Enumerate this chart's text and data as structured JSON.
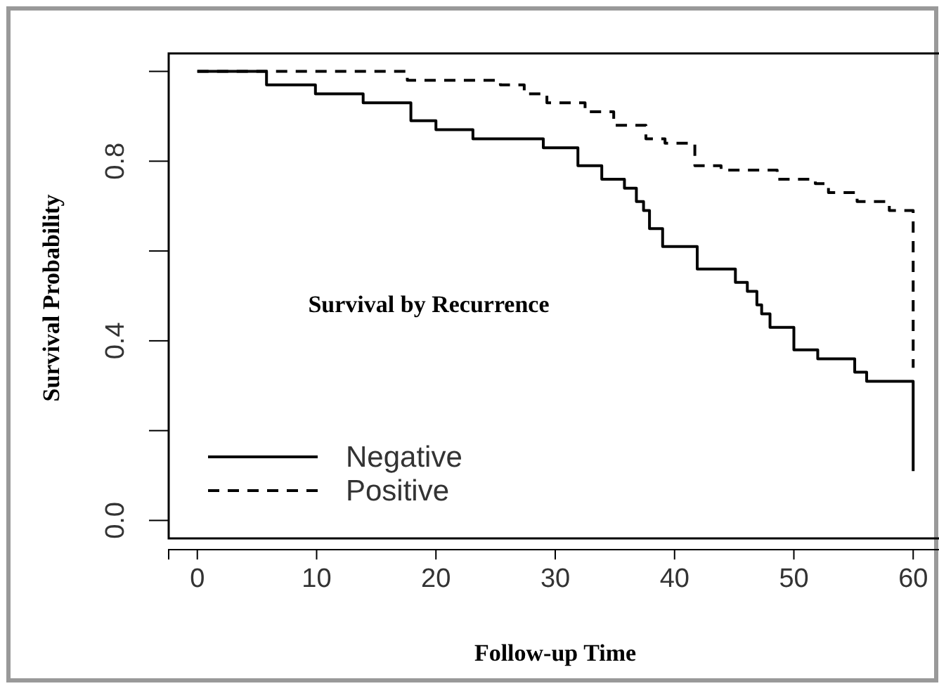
{
  "chart_data": {
    "type": "step",
    "title": "Survival by Recurrence",
    "xlabel": "Follow-up Time",
    "ylabel": "Survival Probability",
    "xlim": [
      -2.4,
      62.4
    ],
    "ylim": [
      -0.04,
      1.04
    ],
    "xticks": [
      0,
      10,
      20,
      30,
      40,
      50,
      60
    ],
    "yticks": [
      {
        "value": 0,
        "label": "0.0"
      },
      {
        "value": 0.2,
        "label": null
      },
      {
        "value": 0.4,
        "label": "0.4"
      },
      {
        "value": 0.6,
        "label": null
      },
      {
        "value": 0.8,
        "label": "0.8"
      },
      {
        "value": 1,
        "label": null
      }
    ],
    "legend": "bottom left",
    "grid": false,
    "series": [
      {
        "name": "Negative",
        "color": "#000000",
        "line_style": "solid",
        "x": [
          0,
          5.8,
          9.9,
          13.9,
          17.9,
          20,
          23.1,
          29,
          31.9,
          33.9,
          35.8,
          36.8,
          37.4,
          37.9,
          39,
          41.9,
          45.1,
          46.1,
          46.9,
          47.3,
          48,
          50,
          52,
          55.1,
          56.1,
          60
        ],
        "values": [
          1,
          0.97,
          0.95,
          0.93,
          0.89,
          0.87,
          0.85,
          0.83,
          0.79,
          0.76,
          0.74,
          0.71,
          0.69,
          0.65,
          0.61,
          0.56,
          0.53,
          0.51,
          0.48,
          0.46,
          0.43,
          0.38,
          0.36,
          0.33,
          0.31,
          0.11
        ]
      },
      {
        "name": "Positive",
        "color": "#000000",
        "line_style": "dashed",
        "x": [
          0,
          17.6,
          25.4,
          27.4,
          29.3,
          32.5,
          34.9,
          37.6,
          39.2,
          41.7,
          43.9,
          48.6,
          51.8,
          52.9,
          55.3,
          58,
          60
        ],
        "values": [
          1,
          0.98,
          0.97,
          0.95,
          0.93,
          0.91,
          0.88,
          0.85,
          0.84,
          0.79,
          0.78,
          0.76,
          0.75,
          0.73,
          0.71,
          0.69,
          0.34
        ]
      }
    ]
  }
}
